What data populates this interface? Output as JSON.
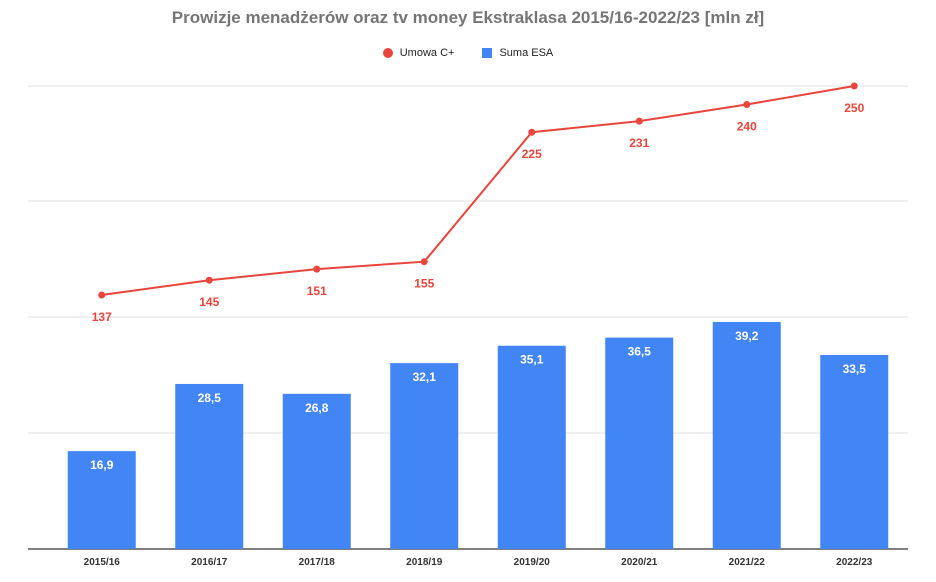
{
  "chart_data": {
    "type": "bar+line",
    "title": "Prowizje menadżerów oraz tv money Ekstraklasa 2015/16-2022/23 [mln zł]",
    "categories": [
      "2015/16",
      "2016/17",
      "2017/18",
      "2018/19",
      "2019/20",
      "2020/21",
      "2021/22",
      "2022/23"
    ],
    "series": [
      {
        "name": "Umowa C+",
        "type": "line",
        "color": "#e8453c",
        "values": [
          137,
          145,
          151,
          155,
          225,
          231,
          240,
          250
        ],
        "labels": [
          "137",
          "145",
          "151",
          "155",
          "225",
          "231",
          "240",
          "250"
        ]
      },
      {
        "name": "Suma ESA",
        "type": "bar",
        "color": "#4285f4",
        "values": [
          16.9,
          28.5,
          26.8,
          32.1,
          35.1,
          36.5,
          39.2,
          33.5
        ],
        "labels": [
          "16,9",
          "28,5",
          "26,8",
          "32,1",
          "35,1",
          "36,5",
          "39,2",
          "33,5"
        ]
      }
    ],
    "legend_position": "top-center",
    "grid": true
  }
}
